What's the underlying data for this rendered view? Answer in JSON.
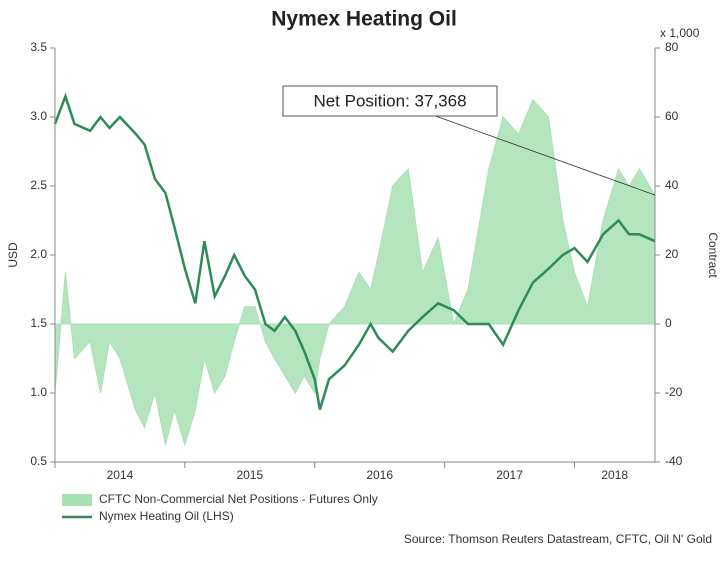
{
  "chart_data": {
    "type": "line",
    "title": "Nymex Heating Oil",
    "y_label": "USD",
    "y2_label": "Contract",
    "y2_unit": "x 1,000",
    "annotation": "Net Position: 37,368",
    "source": "Source: Thomson Reuters Datastream, CFTC, Oil N' Gold",
    "legend": "bottom",
    "grid": false,
    "xlim": [
      2014,
      2018.62
    ],
    "xticks": [
      {
        "value": 2014,
        "label": "2014"
      },
      {
        "value": 2015,
        "label": "2015"
      },
      {
        "value": 2016,
        "label": "2016"
      },
      {
        "value": 2017,
        "label": "2017"
      },
      {
        "value": 2018,
        "label": "2018"
      }
    ],
    "ylim": [
      0.5,
      3.5
    ],
    "yticks": [
      0.5,
      {
        "value": 1,
        "label": "1.0"
      },
      1.5,
      {
        "value": 2,
        "label": "2.0"
      },
      2.5,
      {
        "value": 3,
        "label": "3.0"
      },
      3.5
    ],
    "y2lim": [
      -40,
      80
    ],
    "y2ticks": [
      -40,
      -20,
      0,
      20,
      40,
      60,
      80
    ],
    "x": [
      2014.0,
      2014.08,
      2014.15,
      2014.27,
      2014.35,
      2014.42,
      2014.5,
      2014.62,
      2014.69,
      2014.77,
      2014.85,
      2014.92,
      2015.0,
      2015.08,
      2015.15,
      2015.23,
      2015.31,
      2015.38,
      2015.46,
      2015.54,
      2015.62,
      2015.69,
      2015.77,
      2015.85,
      2015.92,
      2016.0,
      2016.04,
      2016.11,
      2016.23,
      2016.34,
      2016.43,
      2016.49,
      2016.6,
      2016.72,
      2016.83,
      2016.95,
      2017.07,
      2017.18,
      2017.34,
      2017.45,
      2017.57,
      2017.68,
      2017.8,
      2017.91,
      2018.0,
      2018.1,
      2018.22,
      2018.34,
      2018.42,
      2018.5,
      2018.62
    ],
    "series": [
      {
        "name": "CFTC Non-Commercial Net Positions - Futures Only",
        "type": "area",
        "axis": "y2",
        "color": "#a8e0b4",
        "values": [
          -20,
          15,
          -10,
          -5,
          -20,
          -5,
          -10,
          -25,
          -30,
          -20,
          -35,
          -25,
          -35,
          -25,
          -10,
          -20,
          -15,
          -5,
          5,
          5,
          -5,
          -10,
          -15,
          -20,
          -15,
          -20,
          -10,
          0,
          5,
          15,
          10,
          20,
          40,
          45,
          15,
          25,
          0,
          10,
          45,
          60,
          55,
          65,
          60,
          30,
          15,
          5,
          30,
          45,
          40,
          45,
          37.368
        ]
      },
      {
        "name": "Nymex Heating Oil (LHS)",
        "type": "line",
        "color": "#2e8b57",
        "values": [
          2.95,
          3.15,
          2.95,
          2.9,
          3.0,
          2.92,
          3.0,
          2.88,
          2.8,
          2.55,
          2.45,
          2.2,
          1.9,
          1.65,
          2.1,
          1.7,
          1.85,
          2.0,
          1.85,
          1.75,
          1.5,
          1.45,
          1.55,
          1.45,
          1.3,
          1.1,
          0.88,
          1.1,
          1.2,
          1.35,
          1.5,
          1.4,
          1.3,
          1.45,
          1.55,
          1.65,
          1.6,
          1.5,
          1.5,
          1.35,
          1.6,
          1.8,
          1.9,
          2.0,
          2.05,
          1.95,
          2.15,
          2.25,
          2.15,
          2.15,
          2.1
        ]
      }
    ]
  }
}
